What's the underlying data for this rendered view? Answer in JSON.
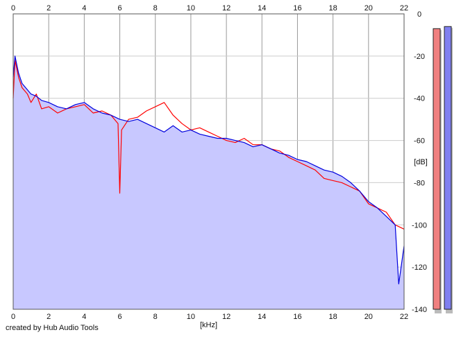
{
  "footer": {
    "credit": "created by Hub Audio Tools"
  },
  "chart_data": {
    "type": "area",
    "title": "",
    "xlabel": "[kHz]",
    "ylabel": "[dB]",
    "xlim": [
      0,
      22
    ],
    "ylim": [
      -140,
      0
    ],
    "x_ticks": [
      0,
      2,
      4,
      6,
      8,
      10,
      12,
      14,
      16,
      18,
      20,
      22
    ],
    "y_ticks": [
      0,
      -20,
      -40,
      -60,
      -80,
      -100,
      -120,
      -140
    ],
    "y_tick_labels": [
      "0",
      "-20",
      "-40",
      "-60",
      "-80",
      "-100",
      "-120",
      "-140"
    ],
    "grid": true,
    "fill_color": "#c8c8ff",
    "series": [
      {
        "color": "#ff0000",
        "x": [
          0,
          0.1,
          0.3,
          0.5,
          0.8,
          1.0,
          1.3,
          1.6,
          2.0,
          2.5,
          3.0,
          3.5,
          4.0,
          4.5,
          5.0,
          5.5,
          5.9,
          6.0,
          6.1,
          6.5,
          7.0,
          7.5,
          8.0,
          8.5,
          9.0,
          9.5,
          10.0,
          10.5,
          11.0,
          11.5,
          12.0,
          12.5,
          13.0,
          13.5,
          14.0,
          14.5,
          15.0,
          15.5,
          16.0,
          16.5,
          17.0,
          17.5,
          18.0,
          18.5,
          19.0,
          19.5,
          20.0,
          20.5,
          21.0,
          21.5,
          22.0
        ],
        "y": [
          -40,
          -22,
          -30,
          -35,
          -38,
          -42,
          -38,
          -45,
          -44,
          -47,
          -45,
          -44,
          -43,
          -47,
          -46,
          -48,
          -52,
          -85,
          -55,
          -50,
          -49,
          -46,
          -44,
          -42,
          -48,
          -52,
          -55,
          -54,
          -56,
          -58,
          -60,
          -61,
          -59,
          -62,
          -62,
          -64,
          -65,
          -68,
          -70,
          -72,
          -74,
          -78,
          -79,
          -80,
          -82,
          -84,
          -90,
          -92,
          -94,
          -100,
          -102
        ]
      },
      {
        "color": "#0000dd",
        "x": [
          0,
          0.1,
          0.3,
          0.5,
          0.8,
          1.0,
          1.3,
          1.6,
          2.0,
          2.5,
          3.0,
          3.5,
          4.0,
          4.5,
          5.0,
          5.5,
          6.0,
          6.5,
          7.0,
          7.5,
          8.0,
          8.5,
          9.0,
          9.5,
          10.0,
          10.5,
          11.0,
          11.5,
          12.0,
          12.5,
          13.0,
          13.5,
          14.0,
          14.5,
          15.0,
          15.5,
          16.0,
          16.5,
          17.0,
          17.5,
          18.0,
          18.5,
          19.0,
          19.5,
          20.0,
          20.5,
          21.0,
          21.5,
          21.7,
          22.0
        ],
        "y": [
          -30,
          -20,
          -28,
          -33,
          -36,
          -38,
          -39,
          -41,
          -42,
          -44,
          -45,
          -43,
          -42,
          -45,
          -47,
          -48,
          -50,
          -51,
          -50,
          -52,
          -54,
          -56,
          -53,
          -56,
          -55,
          -57,
          -58,
          -59,
          -59,
          -60,
          -61,
          -63,
          -62,
          -64,
          -66,
          -67,
          -69,
          -70,
          -72,
          -74,
          -75,
          -77,
          -80,
          -84,
          -89,
          -92,
          -96,
          -100,
          -128,
          -110
        ]
      }
    ],
    "meters": [
      {
        "color": "#f08080",
        "value_db": -7
      },
      {
        "color": "#8080f0",
        "value_db": -6
      }
    ]
  }
}
